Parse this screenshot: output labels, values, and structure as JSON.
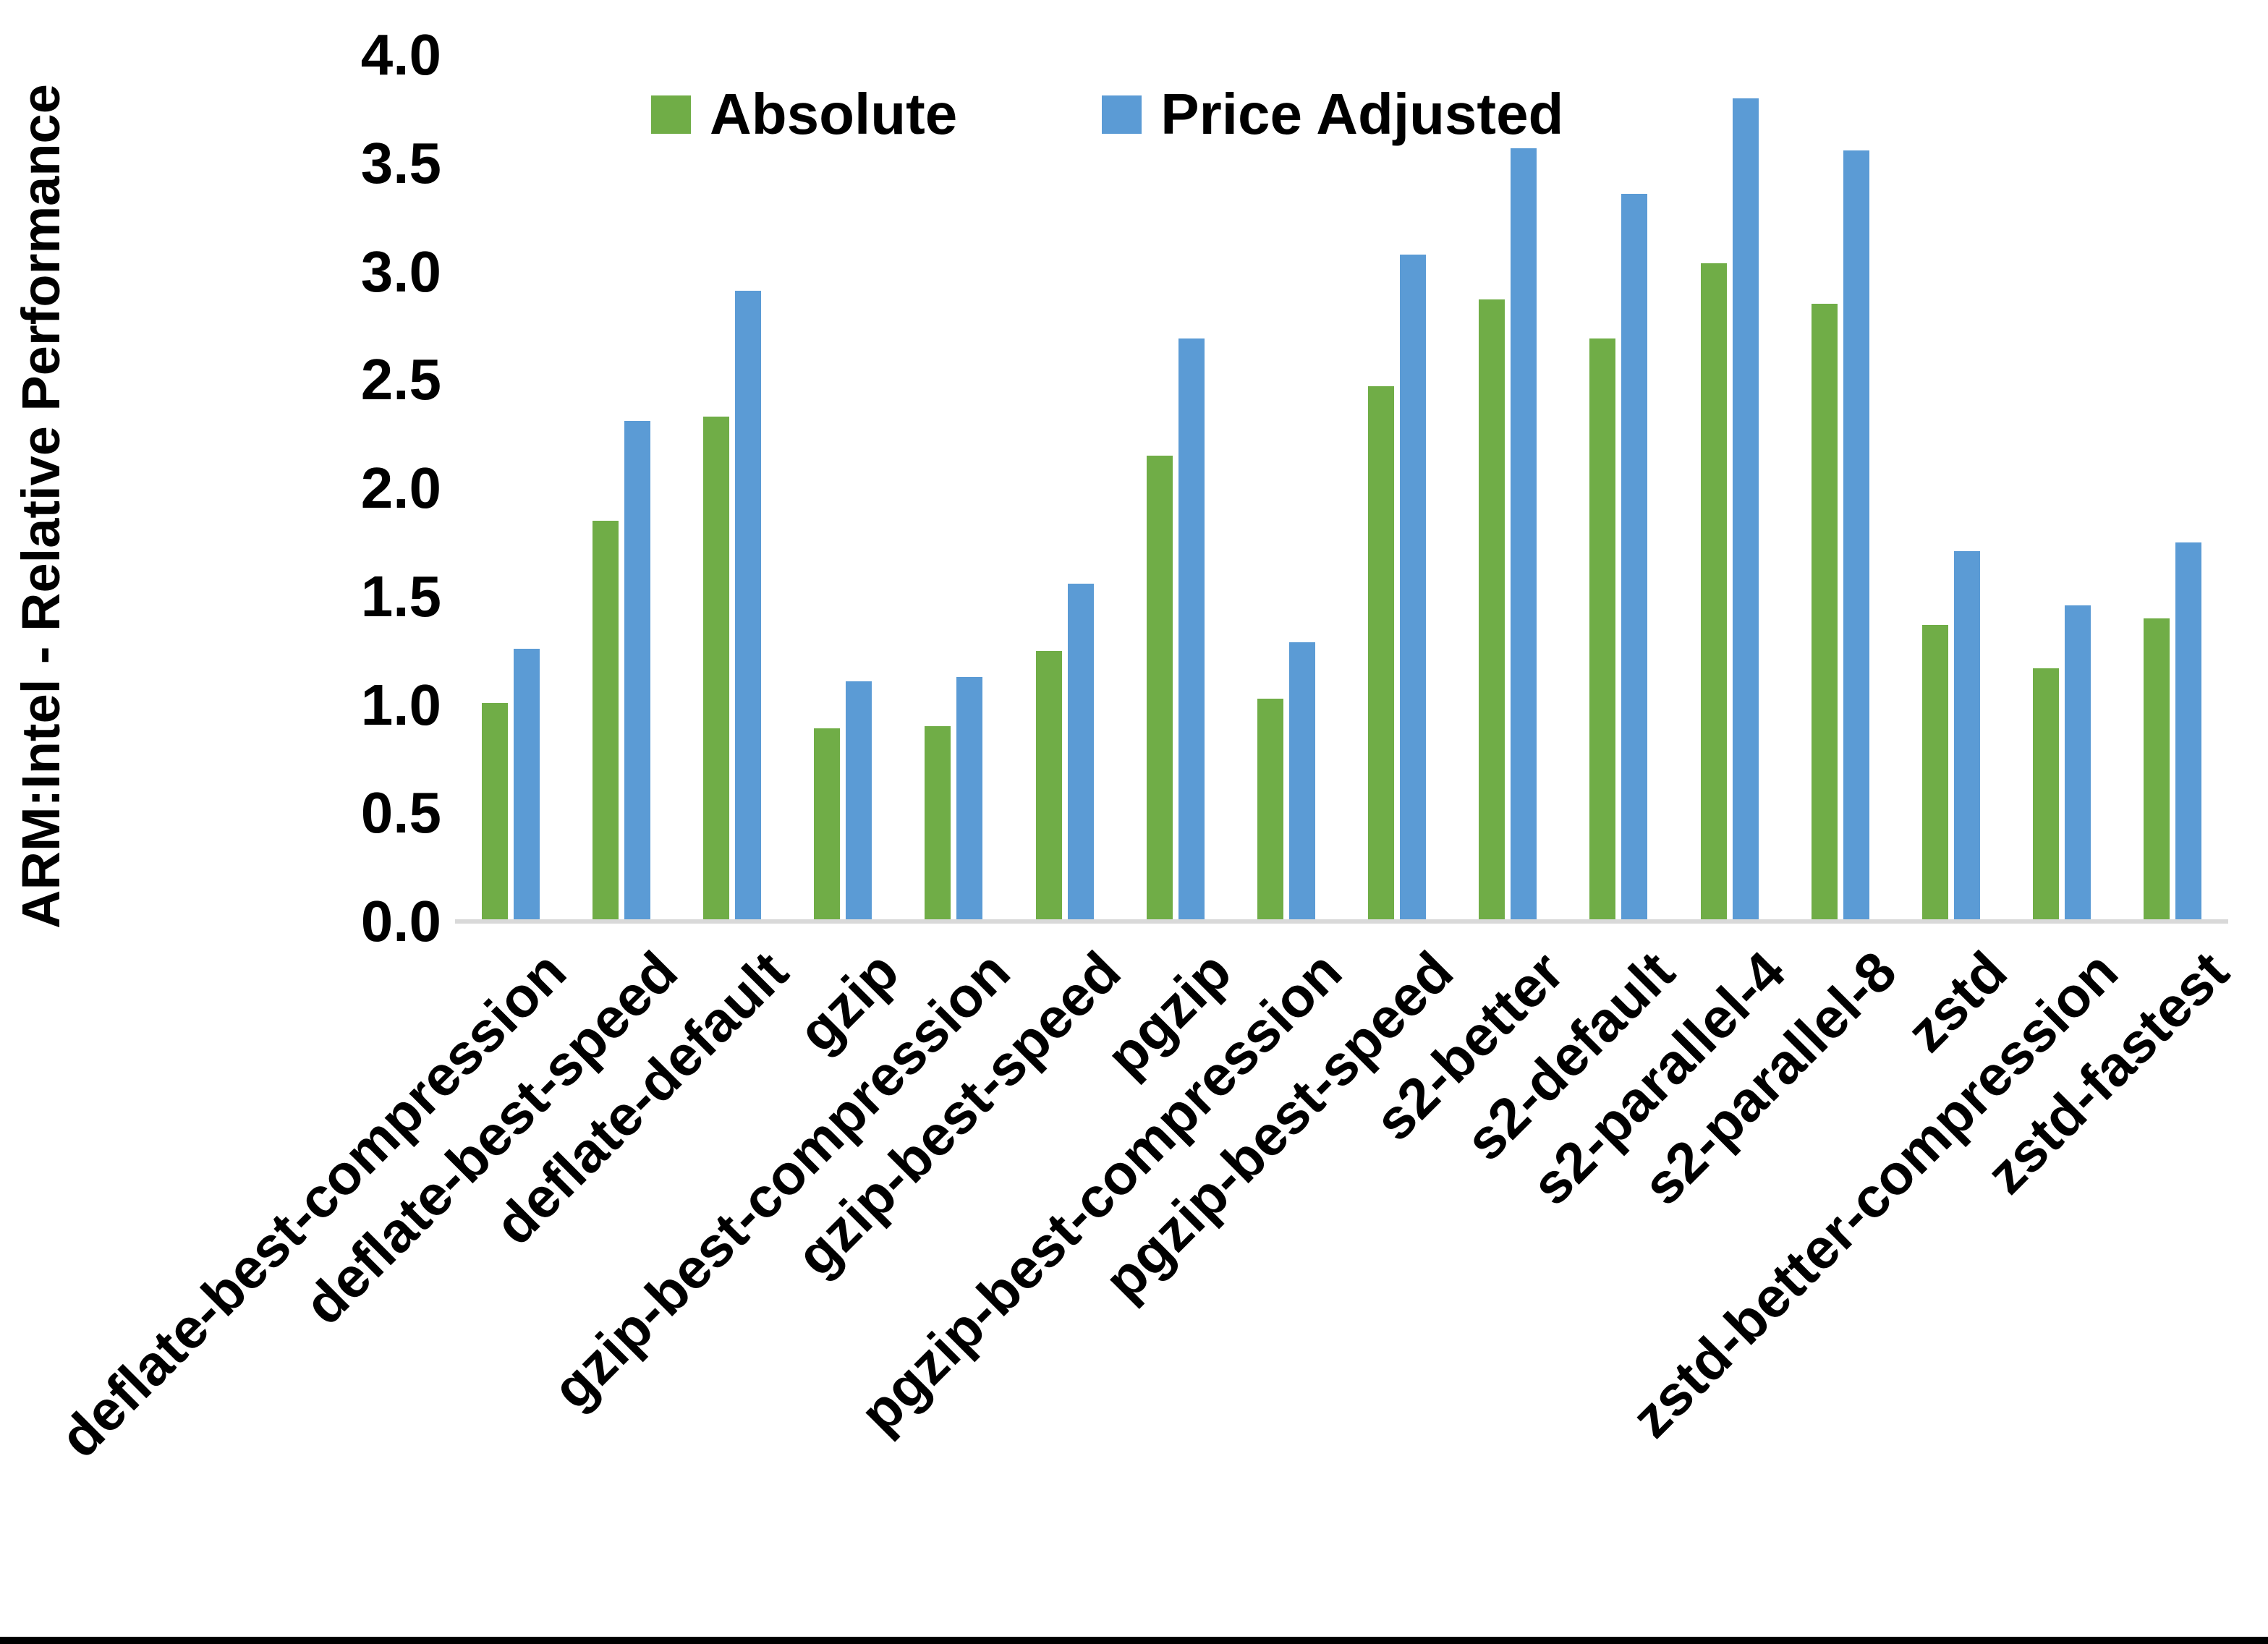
{
  "chart_data": {
    "type": "bar",
    "title": "",
    "xlabel": "",
    "ylabel": "ARM:Intel - Relative Performance",
    "ylim": [
      0.0,
      4.0
    ],
    "ytick_step": 0.5,
    "ytick_labels": [
      "0.0",
      "0.5",
      "1.0",
      "1.5",
      "2.0",
      "2.5",
      "3.0",
      "3.5",
      "4.0"
    ],
    "grid": false,
    "legend_position": "top-center",
    "axis_line_color": "#D9D9D9",
    "background_color": "#FFFFFF",
    "bottom_border_color": "#000000",
    "categories": [
      "deflate-best-compression",
      "deflate-best-speed",
      "deflate-default",
      "gzip",
      "gzip-best-compression",
      "gzip-best-speed",
      "pgzip",
      "pgzip-best-compression",
      "pgzip-best-speed",
      "s2-better",
      "s2-default",
      "s2-parallel-4",
      "s2-parallel-8",
      "zstd",
      "zstd-better-compression",
      "zstd-fastest"
    ],
    "series": [
      {
        "name": "Absolute",
        "color": "#70AD47",
        "values": [
          1.01,
          1.85,
          2.33,
          0.89,
          0.9,
          1.25,
          2.15,
          1.03,
          2.47,
          2.87,
          2.69,
          3.04,
          2.85,
          1.37,
          1.17,
          1.4
        ]
      },
      {
        "name": "Price Adjusted",
        "color": "#5B9BD5",
        "values": [
          1.26,
          2.31,
          2.91,
          1.11,
          1.13,
          1.56,
          2.69,
          1.29,
          3.08,
          3.57,
          3.36,
          3.8,
          3.56,
          1.71,
          1.46,
          1.75
        ]
      }
    ]
  }
}
